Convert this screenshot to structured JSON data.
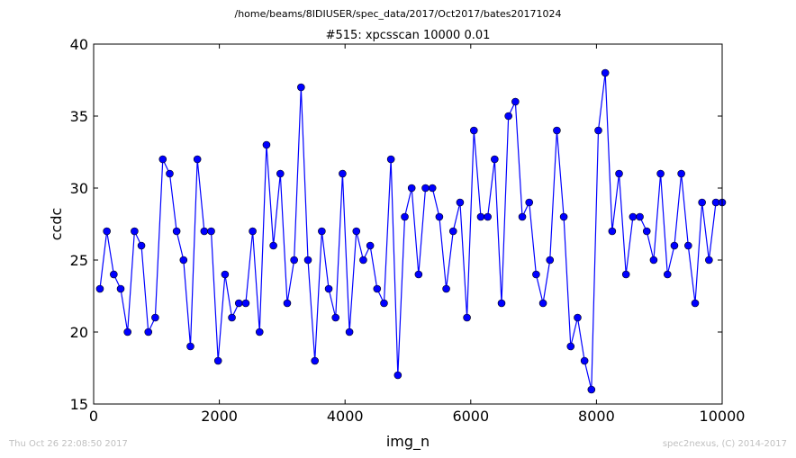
{
  "suptitle": "/home/beams/8IDIUSER/spec_data/2017/Oct2017/bates20171024",
  "footer_left": "Thu Oct 26 22:08:50 2017",
  "footer_right": "spec2nexus, (C) 2014-2017",
  "colors": {
    "series": "#0000ff",
    "axes": "#000000",
    "footer": "#c0c0c0"
  },
  "chart_data": {
    "type": "line",
    "markers": "circle",
    "title": "#515: xpcsscan 10000 0.01",
    "xlabel": "img_n",
    "ylabel": "ccdc",
    "xlim": [
      0,
      10000
    ],
    "ylim": [
      15,
      40
    ],
    "xticks": [
      0,
      2000,
      4000,
      6000,
      8000,
      10000
    ],
    "yticks": [
      15,
      20,
      25,
      30,
      35,
      40
    ],
    "grid": false,
    "x": [
      100,
      210,
      320,
      430,
      540,
      650,
      760,
      870,
      980,
      1100,
      1210,
      1320,
      1430,
      1540,
      1650,
      1760,
      1870,
      1980,
      2090,
      2200,
      2310,
      2420,
      2530,
      2640,
      2750,
      2860,
      2970,
      3080,
      3190,
      3300,
      3410,
      3520,
      3630,
      3740,
      3850,
      3960,
      4070,
      4180,
      4290,
      4400,
      4510,
      4620,
      4730,
      4840,
      4950,
      5060,
      5170,
      5280,
      5390,
      5500,
      5610,
      5720,
      5830,
      5940,
      6050,
      6160,
      6270,
      6380,
      6490,
      6600,
      6710,
      6820,
      6930,
      7040,
      7150,
      7260,
      7370,
      7480,
      7590,
      7700,
      7810,
      7920,
      8030,
      8140,
      8250,
      8360,
      8470,
      8580,
      8690,
      8800,
      8910,
      9020,
      9130,
      9240,
      9350,
      9460,
      9570,
      9680,
      9790,
      9900,
      10000
    ],
    "y": [
      23,
      27,
      24,
      23,
      20,
      27,
      26,
      20,
      21,
      32,
      31,
      27,
      25,
      19,
      32,
      27,
      27,
      18,
      24,
      21,
      22,
      22,
      27,
      20,
      33,
      26,
      31,
      22,
      25,
      37,
      25,
      18,
      27,
      23,
      21,
      31,
      20,
      27,
      25,
      26,
      23,
      22,
      32,
      17,
      28,
      30,
      24,
      30,
      30,
      28,
      23,
      27,
      29,
      21,
      34,
      28,
      28,
      32,
      22,
      35,
      36,
      28,
      29,
      24,
      22,
      25,
      34,
      28,
      19,
      21,
      18,
      16,
      34,
      38,
      27,
      31,
      24,
      28,
      28,
      27,
      25,
      31,
      24,
      26,
      31,
      26,
      22,
      29,
      25,
      29,
      29
    ]
  }
}
